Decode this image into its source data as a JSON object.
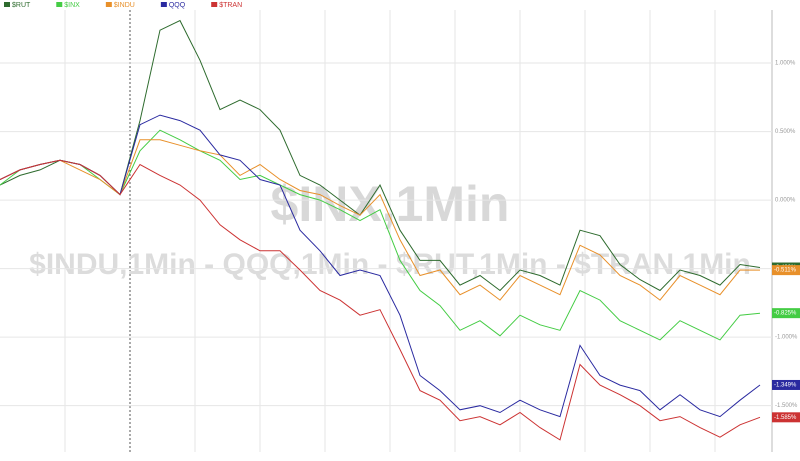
{
  "chart_data": {
    "type": "line",
    "annotations": [
      "$INX,1Min",
      "$INDU,1Min - QQQ,1Min - $RUT,1Min - $TRAN,1Min"
    ],
    "categories": [
      null,
      null,
      null,
      null,
      null,
      null,
      null,
      null,
      null,
      null,
      null,
      null,
      null,
      null,
      null,
      null,
      null,
      null,
      null,
      null,
      null,
      null,
      null,
      null,
      null,
      null,
      null,
      null,
      null,
      null,
      null,
      null,
      null,
      null,
      null,
      null,
      null,
      null,
      null
    ],
    "ylim": [
      -1.86,
      1.46
    ],
    "yticks": [
      {
        "value": 1,
        "label": "1.000%"
      },
      {
        "value": 0.5,
        "label": "0.500%"
      },
      {
        "value": 0,
        "label": "0.000%"
      },
      {
        "value": -0.5,
        "label": "-0.500%"
      },
      {
        "value": -1,
        "label": "-1.000%"
      },
      {
        "value": -1.5,
        "label": "-1.500%"
      }
    ],
    "grid": true,
    "series": [
      {
        "name": "$RUT",
        "color": "#2e6b2e",
        "values": [
          0.11,
          0.18,
          0.22,
          0.29,
          0.26,
          0.18,
          0.04,
          0.58,
          1.24,
          1.31,
          1.02,
          0.66,
          0.73,
          0.66,
          0.51,
          0.18,
          0.11,
          0,
          -0.11,
          0.11,
          -0.22,
          -0.44,
          -0.44,
          -0.62,
          -0.55,
          -0.66,
          -0.51,
          -0.55,
          -0.62,
          -0.22,
          -0.26,
          -0.47,
          -0.58,
          -0.66,
          -0.51,
          -0.55,
          -0.62,
          -0.47,
          -0.492
        ],
        "value_labels": [
          null,
          null,
          null,
          null,
          null,
          null,
          null,
          null,
          null,
          null,
          null,
          null,
          null,
          null,
          null,
          null,
          null,
          null,
          null,
          null,
          null,
          null,
          null,
          null,
          null,
          null,
          null,
          null,
          null,
          null,
          null,
          null,
          null,
          null,
          null,
          null,
          null,
          null,
          "-0.492%"
        ]
      },
      {
        "name": "$INX",
        "color": "#44cc44",
        "values": [
          0.11,
          0.22,
          0.26,
          0.29,
          0.26,
          0.15,
          0.04,
          0.36,
          0.51,
          0.44,
          0.36,
          0.29,
          0.15,
          0.18,
          0.11,
          0.04,
          0,
          -0.07,
          -0.15,
          -0.07,
          -0.44,
          -0.66,
          -0.77,
          -0.95,
          -0.88,
          -0.99,
          -0.84,
          -0.91,
          -0.95,
          -0.66,
          -0.73,
          -0.88,
          -0.95,
          -1.02,
          -0.88,
          -0.95,
          -1.02,
          -0.84,
          -0.825
        ],
        "value_labels": [
          null,
          null,
          null,
          null,
          null,
          null,
          null,
          null,
          null,
          null,
          null,
          null,
          null,
          null,
          null,
          null,
          null,
          null,
          null,
          null,
          null,
          null,
          null,
          null,
          null,
          null,
          null,
          null,
          null,
          null,
          null,
          null,
          null,
          null,
          null,
          null,
          null,
          null,
          "-0.825%"
        ]
      },
      {
        "name": "$INDU",
        "color": "#e8902a",
        "values": [
          0.15,
          0.22,
          0.26,
          0.29,
          0.22,
          0.15,
          0.04,
          0.44,
          0.44,
          0.4,
          0.36,
          0.33,
          0.18,
          0.26,
          0.15,
          0.07,
          0.04,
          -0.04,
          -0.11,
          0.04,
          -0.29,
          -0.55,
          -0.51,
          -0.69,
          -0.62,
          -0.73,
          -0.55,
          -0.62,
          -0.69,
          -0.33,
          -0.4,
          -0.55,
          -0.62,
          -0.73,
          -0.55,
          -0.62,
          -0.69,
          -0.51,
          -0.511
        ],
        "value_labels": [
          null,
          null,
          null,
          null,
          null,
          null,
          null,
          null,
          null,
          null,
          null,
          null,
          null,
          null,
          null,
          null,
          null,
          null,
          null,
          null,
          null,
          null,
          null,
          null,
          null,
          null,
          null,
          null,
          null,
          null,
          null,
          null,
          null,
          null,
          null,
          null,
          null,
          null,
          "-0.511%"
        ]
      },
      {
        "name": "QQQ",
        "color": "#2a2aa0",
        "values": [
          0.15,
          0.22,
          0.26,
          0.29,
          0.26,
          0.18,
          0.04,
          0.55,
          0.62,
          0.58,
          0.51,
          0.33,
          0.29,
          0.15,
          0.11,
          -0.22,
          -0.37,
          -0.55,
          -0.51,
          -0.55,
          -0.84,
          -1.28,
          -1.39,
          -1.53,
          -1.5,
          -1.55,
          -1.46,
          -1.53,
          -1.58,
          -1.06,
          -1.28,
          -1.35,
          -1.39,
          -1.53,
          -1.42,
          -1.53,
          -1.58,
          -1.46,
          -1.349
        ],
        "value_labels": [
          null,
          null,
          null,
          null,
          null,
          null,
          null,
          null,
          null,
          null,
          null,
          null,
          null,
          null,
          null,
          null,
          null,
          null,
          null,
          null,
          null,
          null,
          null,
          null,
          null,
          null,
          null,
          null,
          null,
          null,
          null,
          null,
          null,
          null,
          null,
          null,
          null,
          null,
          "-1.349%"
        ]
      },
      {
        "name": "$TRAN",
        "color": "#cc3333",
        "values": [
          0.15,
          0.22,
          0.26,
          0.29,
          0.26,
          0.18,
          0.04,
          0.26,
          0.18,
          0.11,
          0,
          -0.18,
          -0.29,
          -0.37,
          -0.37,
          -0.51,
          -0.66,
          -0.73,
          -0.84,
          -0.8,
          -1.09,
          -1.39,
          -1.46,
          -1.61,
          -1.58,
          -1.64,
          -1.55,
          -1.66,
          -1.75,
          -1.2,
          -1.35,
          -1.42,
          -1.5,
          -1.61,
          -1.58,
          -1.66,
          -1.73,
          -1.64,
          -1.585
        ],
        "value_labels": [
          null,
          null,
          null,
          null,
          null,
          null,
          null,
          null,
          null,
          null,
          null,
          null,
          null,
          null,
          null,
          null,
          null,
          null,
          null,
          null,
          null,
          null,
          null,
          null,
          null,
          null,
          null,
          null,
          null,
          null,
          null,
          null,
          null,
          null,
          null,
          null,
          null,
          null,
          "-1.585%"
        ]
      }
    ]
  }
}
